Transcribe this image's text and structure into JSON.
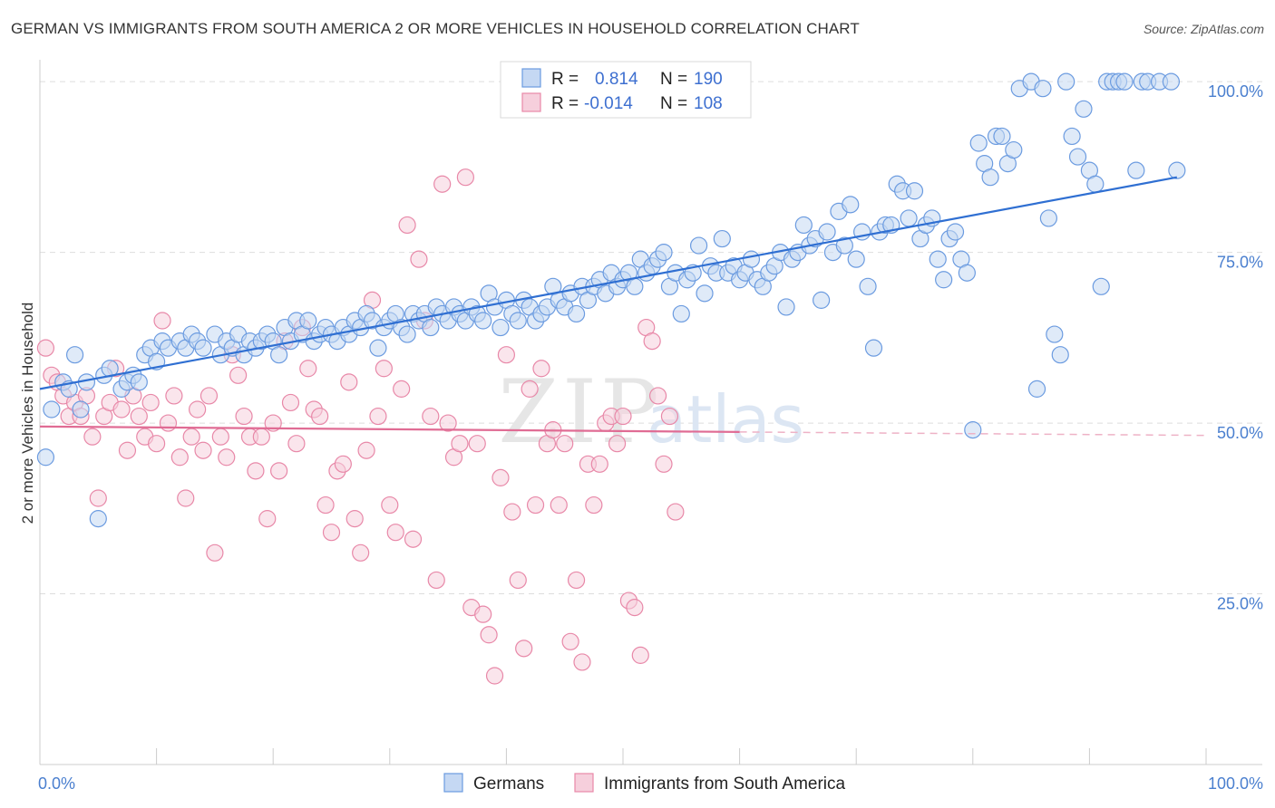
{
  "title": "GERMAN VS IMMIGRANTS FROM SOUTH AMERICA 2 OR MORE VEHICLES IN HOUSEHOLD CORRELATION CHART",
  "source": "Source: ZipAtlas.com",
  "watermark": {
    "zip": "ZIP",
    "atlas": "atlas"
  },
  "chart_data": {
    "type": "scatter",
    "ylabel": "2 or more Vehicles in Household",
    "xlim": [
      0,
      100
    ],
    "ylim": [
      0,
      104
    ],
    "x_tick_labels": [
      {
        "value": 0,
        "label": "0.0%"
      },
      {
        "value": 100,
        "label": "100.0%"
      }
    ],
    "y_tick_labels": [
      {
        "value": 25,
        "label": "25.0%"
      },
      {
        "value": 50,
        "label": "50.0%"
      },
      {
        "value": 75,
        "label": "75.0%"
      },
      {
        "value": 100,
        "label": "100.0%"
      }
    ],
    "legend_stats": [
      {
        "r_label": "R =",
        "r_value": "0.814",
        "n_label": "N =",
        "n_value": "190"
      },
      {
        "r_label": "R =",
        "r_value": "-0.014",
        "n_label": "N =",
        "n_value": "108"
      }
    ],
    "series": [
      {
        "name": "Germans",
        "color": "#6b9be0",
        "fill": "#c5d8f3",
        "trend": {
          "x": [
            0,
            97.5
          ],
          "y": [
            55,
            86
          ]
        },
        "points": [
          [
            0.5,
            45
          ],
          [
            1,
            52
          ],
          [
            2,
            56
          ],
          [
            2.5,
            55
          ],
          [
            3,
            60
          ],
          [
            3.5,
            52
          ],
          [
            4,
            56
          ],
          [
            5,
            36
          ],
          [
            5.5,
            57
          ],
          [
            6,
            58
          ],
          [
            7,
            55
          ],
          [
            7.5,
            56
          ],
          [
            8,
            57
          ],
          [
            8.5,
            56
          ],
          [
            9,
            60
          ],
          [
            9.5,
            61
          ],
          [
            10,
            59
          ],
          [
            10.5,
            62
          ],
          [
            11,
            61
          ],
          [
            12,
            62
          ],
          [
            12.5,
            61
          ],
          [
            13,
            63
          ],
          [
            13.5,
            62
          ],
          [
            14,
            61
          ],
          [
            15,
            63
          ],
          [
            15.5,
            60
          ],
          [
            16,
            62
          ],
          [
            16.5,
            61
          ],
          [
            17,
            63
          ],
          [
            17.5,
            60
          ],
          [
            18,
            62
          ],
          [
            18.5,
            61
          ],
          [
            19,
            62
          ],
          [
            19.5,
            63
          ],
          [
            20,
            62
          ],
          [
            20.5,
            60
          ],
          [
            21,
            64
          ],
          [
            21.5,
            62
          ],
          [
            22,
            65
          ],
          [
            22.5,
            63
          ],
          [
            23,
            65
          ],
          [
            23.5,
            62
          ],
          [
            24,
            63
          ],
          [
            24.5,
            64
          ],
          [
            25,
            63
          ],
          [
            25.5,
            62
          ],
          [
            26,
            64
          ],
          [
            26.5,
            63
          ],
          [
            27,
            65
          ],
          [
            27.5,
            64
          ],
          [
            28,
            66
          ],
          [
            28.5,
            65
          ],
          [
            29,
            61
          ],
          [
            29.5,
            64
          ],
          [
            30,
            65
          ],
          [
            30.5,
            66
          ],
          [
            31,
            64
          ],
          [
            31.5,
            63
          ],
          [
            32,
            66
          ],
          [
            32.5,
            65
          ],
          [
            33,
            66
          ],
          [
            33.5,
            64
          ],
          [
            34,
            67
          ],
          [
            34.5,
            66
          ],
          [
            35,
            65
          ],
          [
            35.5,
            67
          ],
          [
            36,
            66
          ],
          [
            36.5,
            65
          ],
          [
            37,
            67
          ],
          [
            37.5,
            66
          ],
          [
            38,
            65
          ],
          [
            38.5,
            69
          ],
          [
            39,
            67
          ],
          [
            39.5,
            64
          ],
          [
            40,
            68
          ],
          [
            40.5,
            66
          ],
          [
            41,
            65
          ],
          [
            41.5,
            68
          ],
          [
            42,
            67
          ],
          [
            42.5,
            65
          ],
          [
            43,
            66
          ],
          [
            43.5,
            67
          ],
          [
            44,
            70
          ],
          [
            44.5,
            68
          ],
          [
            45,
            67
          ],
          [
            45.5,
            69
          ],
          [
            46,
            66
          ],
          [
            46.5,
            70
          ],
          [
            47,
            68
          ],
          [
            47.5,
            70
          ],
          [
            48,
            71
          ],
          [
            48.5,
            69
          ],
          [
            49,
            72
          ],
          [
            49.5,
            70
          ],
          [
            50,
            71
          ],
          [
            50.5,
            72
          ],
          [
            51,
            70
          ],
          [
            51.5,
            74
          ],
          [
            52,
            72
          ],
          [
            52.5,
            73
          ],
          [
            53,
            74
          ],
          [
            53.5,
            75
          ],
          [
            54,
            70
          ],
          [
            54.5,
            72
          ],
          [
            55,
            66
          ],
          [
            55.5,
            71
          ],
          [
            56,
            72
          ],
          [
            56.5,
            76
          ],
          [
            57,
            69
          ],
          [
            57.5,
            73
          ],
          [
            58,
            72
          ],
          [
            58.5,
            77
          ],
          [
            59,
            72
          ],
          [
            59.5,
            73
          ],
          [
            60,
            71
          ],
          [
            60.5,
            72
          ],
          [
            61,
            74
          ],
          [
            61.5,
            71
          ],
          [
            62,
            70
          ],
          [
            62.5,
            72
          ],
          [
            63,
            73
          ],
          [
            63.5,
            75
          ],
          [
            64,
            67
          ],
          [
            64.5,
            74
          ],
          [
            65,
            75
          ],
          [
            65.5,
            79
          ],
          [
            66,
            76
          ],
          [
            66.5,
            77
          ],
          [
            67,
            68
          ],
          [
            67.5,
            78
          ],
          [
            68,
            75
          ],
          [
            68.5,
            81
          ],
          [
            69,
            76
          ],
          [
            69.5,
            82
          ],
          [
            70,
            74
          ],
          [
            70.5,
            78
          ],
          [
            71,
            70
          ],
          [
            71.5,
            61
          ],
          [
            72,
            78
          ],
          [
            72.5,
            79
          ],
          [
            73,
            79
          ],
          [
            73.5,
            85
          ],
          [
            74,
            84
          ],
          [
            74.5,
            80
          ],
          [
            75,
            84
          ],
          [
            75.5,
            77
          ],
          [
            76,
            79
          ],
          [
            76.5,
            80
          ],
          [
            77,
            74
          ],
          [
            77.5,
            71
          ],
          [
            78,
            77
          ],
          [
            78.5,
            78
          ],
          [
            79,
            74
          ],
          [
            79.5,
            72
          ],
          [
            80,
            49
          ],
          [
            80.5,
            91
          ],
          [
            81,
            88
          ],
          [
            81.5,
            86
          ],
          [
            82,
            92
          ],
          [
            82.5,
            92
          ],
          [
            83,
            88
          ],
          [
            83.5,
            90
          ],
          [
            84,
            99
          ],
          [
            85,
            100
          ],
          [
            85.5,
            55
          ],
          [
            86,
            99
          ],
          [
            86.5,
            80
          ],
          [
            87,
            63
          ],
          [
            87.5,
            60
          ],
          [
            88,
            100
          ],
          [
            88.5,
            92
          ],
          [
            89,
            89
          ],
          [
            89.5,
            96
          ],
          [
            90,
            87
          ],
          [
            90.5,
            85
          ],
          [
            91,
            70
          ],
          [
            91.5,
            100
          ],
          [
            92,
            100
          ],
          [
            92.5,
            100
          ],
          [
            93,
            100
          ],
          [
            94,
            87
          ],
          [
            94.5,
            100
          ],
          [
            95,
            100
          ],
          [
            96,
            100
          ],
          [
            97,
            100
          ],
          [
            97.5,
            87
          ]
        ]
      },
      {
        "name": "Immigrants from South America",
        "color": "#e888a8",
        "fill": "#f6cfdc",
        "trend": {
          "x": [
            0,
            60
          ],
          "y": [
            49.5,
            48.7
          ]
        },
        "trend_dashed": {
          "x": [
            60,
            100
          ],
          "y": [
            48.7,
            48.2
          ]
        },
        "points": [
          [
            0.5,
            61
          ],
          [
            1,
            57
          ],
          [
            1.5,
            56
          ],
          [
            2,
            54
          ],
          [
            2.5,
            51
          ],
          [
            3,
            53
          ],
          [
            3.5,
            51
          ],
          [
            4,
            54
          ],
          [
            4.5,
            48
          ],
          [
            5,
            39
          ],
          [
            5.5,
            51
          ],
          [
            6,
            53
          ],
          [
            6.5,
            58
          ],
          [
            7,
            52
          ],
          [
            7.5,
            46
          ],
          [
            8,
            54
          ],
          [
            8.5,
            51
          ],
          [
            9,
            48
          ],
          [
            9.5,
            53
          ],
          [
            10,
            47
          ],
          [
            10.5,
            65
          ],
          [
            11,
            50
          ],
          [
            11.5,
            54
          ],
          [
            12,
            45
          ],
          [
            12.5,
            39
          ],
          [
            13,
            48
          ],
          [
            13.5,
            52
          ],
          [
            14,
            46
          ],
          [
            14.5,
            54
          ],
          [
            15,
            31
          ],
          [
            15.5,
            48
          ],
          [
            16,
            45
          ],
          [
            16.5,
            60
          ],
          [
            17,
            57
          ],
          [
            17.5,
            51
          ],
          [
            18,
            48
          ],
          [
            18.5,
            43
          ],
          [
            19,
            48
          ],
          [
            19.5,
            36
          ],
          [
            20,
            50
          ],
          [
            20.5,
            43
          ],
          [
            21,
            62
          ],
          [
            21.5,
            53
          ],
          [
            22,
            47
          ],
          [
            22.5,
            64
          ],
          [
            23,
            58
          ],
          [
            23.5,
            52
          ],
          [
            24,
            51
          ],
          [
            24.5,
            38
          ],
          [
            25,
            34
          ],
          [
            25.5,
            43
          ],
          [
            26,
            44
          ],
          [
            26.5,
            56
          ],
          [
            27,
            36
          ],
          [
            27.5,
            31
          ],
          [
            28,
            46
          ],
          [
            28.5,
            68
          ],
          [
            29,
            51
          ],
          [
            29.5,
            58
          ],
          [
            30,
            38
          ],
          [
            30.5,
            34
          ],
          [
            31,
            55
          ],
          [
            31.5,
            79
          ],
          [
            32,
            33
          ],
          [
            32.5,
            74
          ],
          [
            33,
            65
          ],
          [
            33.5,
            51
          ],
          [
            34,
            27
          ],
          [
            34.5,
            85
          ],
          [
            35,
            50
          ],
          [
            35.5,
            45
          ],
          [
            36,
            47
          ],
          [
            36.5,
            86
          ],
          [
            37,
            23
          ],
          [
            37.5,
            47
          ],
          [
            38,
            22
          ],
          [
            38.5,
            19
          ],
          [
            39,
            13
          ],
          [
            39.5,
            42
          ],
          [
            40,
            60
          ],
          [
            40.5,
            37
          ],
          [
            41,
            27
          ],
          [
            41.5,
            17
          ],
          [
            42,
            55
          ],
          [
            42.5,
            38
          ],
          [
            43,
            58
          ],
          [
            43.5,
            47
          ],
          [
            44,
            49
          ],
          [
            44.5,
            38
          ],
          [
            45,
            47
          ],
          [
            45.5,
            18
          ],
          [
            46,
            27
          ],
          [
            46.5,
            15
          ],
          [
            47,
            44
          ],
          [
            47.5,
            38
          ],
          [
            48,
            44
          ],
          [
            48.5,
            50
          ],
          [
            49,
            51
          ],
          [
            49.5,
            47
          ],
          [
            50,
            51
          ],
          [
            50.5,
            24
          ],
          [
            51,
            23
          ],
          [
            51.5,
            16
          ],
          [
            52,
            64
          ],
          [
            52.5,
            62
          ],
          [
            53,
            54
          ],
          [
            53.5,
            44
          ],
          [
            54,
            51
          ],
          [
            54.5,
            37
          ]
        ]
      }
    ]
  },
  "bottom_legend": [
    {
      "label": "Germans"
    },
    {
      "label": "Immigrants from South America"
    }
  ]
}
